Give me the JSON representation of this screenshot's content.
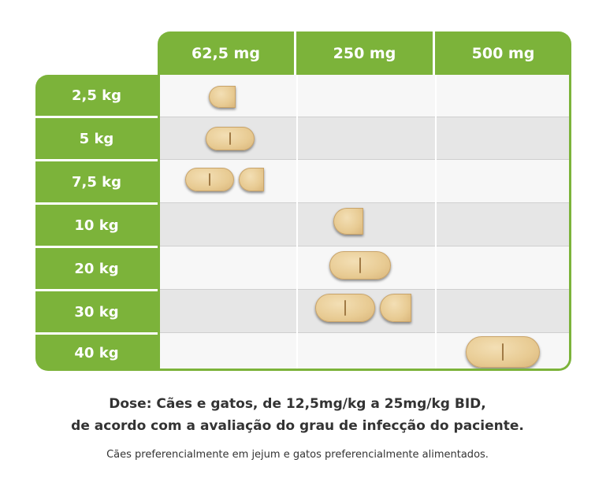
{
  "table": {
    "columns": [
      "62,5 mg",
      "250 mg",
      "500 mg"
    ],
    "rows": [
      {
        "weight": "2,5 kg",
        "tablet": "62,5 mg",
        "whole": 0,
        "half": 1
      },
      {
        "weight": "5 kg",
        "tablet": "62,5 mg",
        "whole": 1,
        "half": 0
      },
      {
        "weight": "7,5 kg",
        "tablet": "62,5 mg",
        "whole": 1,
        "half": 1
      },
      {
        "weight": "10 kg",
        "tablet": "250 mg",
        "whole": 0,
        "half": 1
      },
      {
        "weight": "20 kg",
        "tablet": "250 mg",
        "whole": 1,
        "half": 0
      },
      {
        "weight": "30 kg",
        "tablet": "250 mg",
        "whole": 1,
        "half": 1
      },
      {
        "weight": "40 kg",
        "tablet": "500 mg",
        "whole": 1,
        "half": 0
      }
    ]
  },
  "colors": {
    "accent": "#7cb33a",
    "row_grey": "#e6e6e6",
    "row_white": "#f7f7f7",
    "tablet": "#e8cb93"
  },
  "footnote": {
    "line1": "Dose: Cães e gatos, de 12,5mg/kg a 25mg/kg BID,",
    "line2": "de acordo com a avaliação do grau de infecção do paciente.",
    "line3": "Cães preferencialmente em jejum e gatos preferencialmente alimentados."
  }
}
